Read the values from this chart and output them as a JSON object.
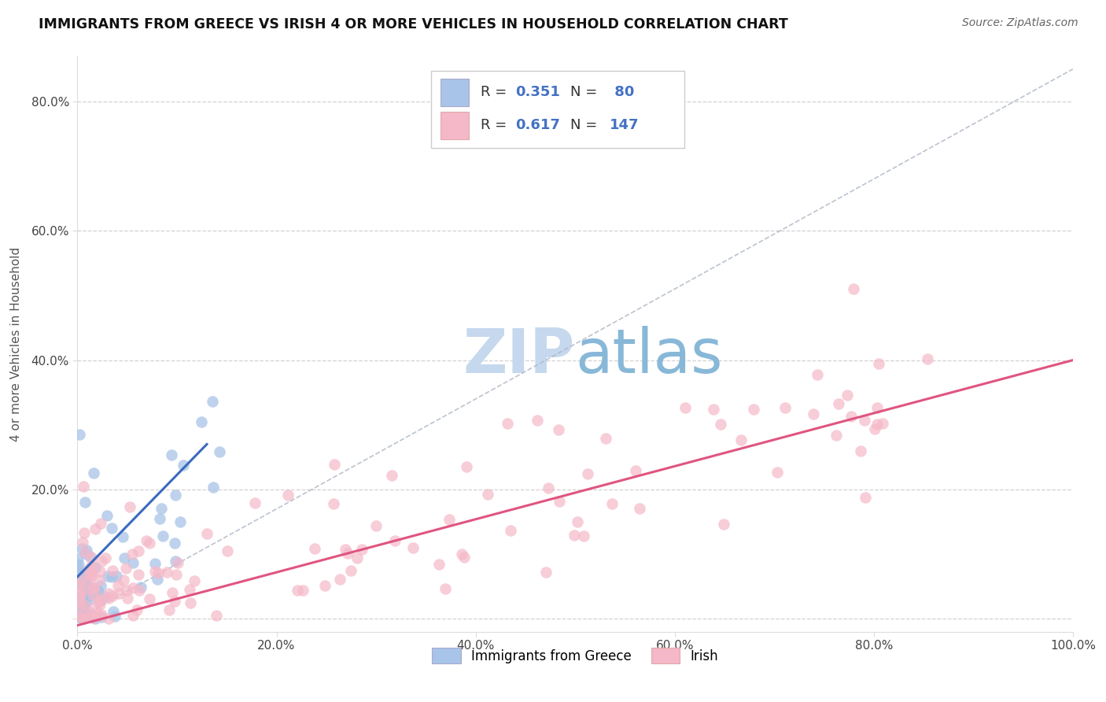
{
  "title": "IMMIGRANTS FROM GREECE VS IRISH 4 OR MORE VEHICLES IN HOUSEHOLD CORRELATION CHART",
  "source": "Source: ZipAtlas.com",
  "ylabel": "4 or more Vehicles in Household",
  "xlim": [
    0.0,
    1.0
  ],
  "ylim": [
    -0.02,
    0.87
  ],
  "xtick_vals": [
    0.0,
    0.2,
    0.4,
    0.6,
    0.8,
    1.0
  ],
  "xtick_labels": [
    "0.0%",
    "20.0%",
    "40.0%",
    "60.0%",
    "80.0%",
    "100.0%"
  ],
  "ytick_vals": [
    0.0,
    0.2,
    0.4,
    0.6,
    0.8
  ],
  "ytick_labels": [
    "",
    "20.0%",
    "40.0%",
    "60.0%",
    "80.0%"
  ],
  "legend_label1": "Immigrants from Greece",
  "legend_label2": "Irish",
  "R1": "0.351",
  "N1": "80",
  "R2": "0.617",
  "N2": "147",
  "color1": "#a8c4e8",
  "color2": "#f5b8c8",
  "line_color1": "#3a6abf",
  "line_color2": "#e05580",
  "diag_color": "#b0b8c8",
  "watermark_color": "#c5d8ee",
  "background_color": "#ffffff",
  "grid_color": "#cccccc",
  "title_color": "#111111",
  "source_color": "#666666",
  "blue_line_x": [
    0.0,
    0.13
  ],
  "blue_line_y": [
    0.065,
    0.27
  ],
  "pink_line_x": [
    0.0,
    1.0
  ],
  "pink_line_y": [
    -0.01,
    0.4
  ],
  "seed1": 12,
  "seed2": 77
}
